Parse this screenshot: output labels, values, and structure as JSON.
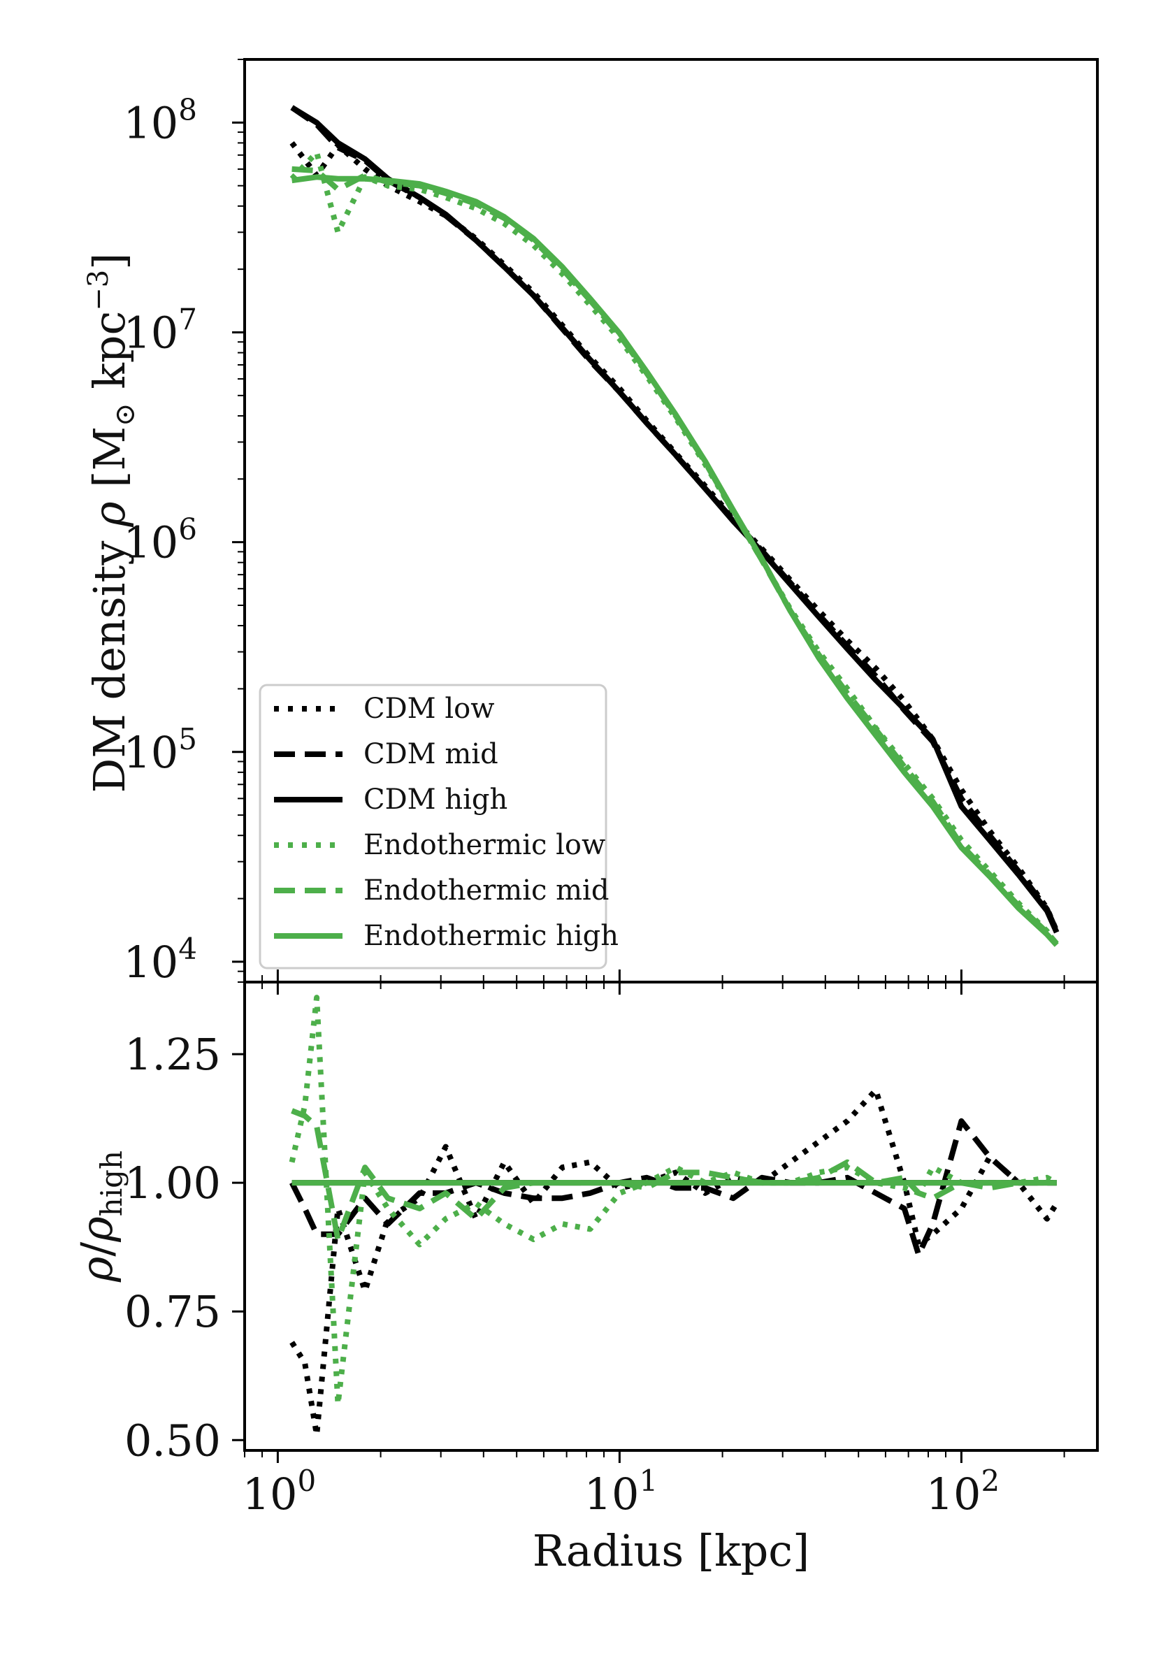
{
  "chart_data": [
    {
      "type": "line",
      "panel": "top",
      "title": "",
      "xlabel": "",
      "ylabel": "DM density ρ [M⊙ kpc⁻³]",
      "ylabel_parts": {
        "prefix": "DM density ",
        "rho": "ρ",
        "unit_open": " [M",
        "unit_sub": "⊙",
        "unit_mid": " kpc",
        "unit_sup": "−3",
        "unit_close": "]"
      },
      "xscale": "log",
      "yscale": "log",
      "xlim": [
        0.8,
        250
      ],
      "ylim": [
        8000,
        200000000
      ],
      "yticks": [
        {
          "value": 100000000,
          "base": "10",
          "exp": "8"
        },
        {
          "value": 10000000,
          "base": "10",
          "exp": "7"
        },
        {
          "value": 1000000,
          "base": "10",
          "exp": "6"
        },
        {
          "value": 100000,
          "base": "10",
          "exp": "5"
        },
        {
          "value": 10000,
          "base": "10",
          "exp": "4"
        }
      ],
      "legend_position": "lower-left",
      "x": [
        1.1,
        1.3,
        1.5,
        1.8,
        2.1,
        2.6,
        3.1,
        3.8,
        4.6,
        5.6,
        6.8,
        8.2,
        10,
        12,
        14.6,
        17.8,
        21.5,
        26.1,
        31.6,
        38.3,
        46.4,
        56.2,
        68.1,
        82.5,
        100,
        121,
        147,
        178,
        190
      ],
      "series": [
        {
          "name": "CDM low",
          "color": "#000000",
          "style": "dotted",
          "values": [
            80000000,
            56000000,
            78000000,
            60000000,
            50000000,
            42000000,
            36000000,
            28000000,
            21000000,
            15500000,
            10800000,
            7600000,
            5400000,
            3800000,
            2650000,
            1850000,
            1300000,
            930000,
            660000,
            470000,
            340000,
            250000,
            175000,
            115000,
            66000,
            42000,
            28000,
            18000,
            14000
          ]
        },
        {
          "name": "CDM mid",
          "color": "#000000",
          "style": "dashed",
          "values": [
            118000000,
            98000000,
            76000000,
            66000000,
            53000000,
            44000000,
            36000000,
            27500000,
            20500000,
            15000000,
            10400000,
            7300000,
            5200000,
            3700000,
            2600000,
            1800000,
            1280000,
            910000,
            640000,
            450000,
            320000,
            230000,
            158000,
            112000,
            60000,
            40000,
            27000,
            17800,
            14000
          ]
        },
        {
          "name": "CDM high",
          "color": "#000000",
          "style": "solid",
          "values": [
            118000000,
            100000000,
            80000000,
            67000000,
            54000000,
            44000000,
            36500000,
            27500000,
            20500000,
            15000000,
            10500000,
            7400000,
            5200000,
            3700000,
            2600000,
            1800000,
            1260000,
            900000,
            630000,
            440000,
            310000,
            220000,
            160000,
            115000,
            55000,
            38000,
            26000,
            17500,
            13800
          ]
        },
        {
          "name": "Endothermic low",
          "color": "#4daf4a",
          "style": "dotted",
          "values": [
            54000000,
            72000000,
            30000000,
            55000000,
            50000000,
            48000000,
            44000000,
            39000000,
            33000000,
            26000000,
            19000000,
            13500000,
            9300000,
            6200000,
            3900000,
            2350000,
            1400000,
            820000,
            480000,
            300000,
            200000,
            130000,
            88000,
            60000,
            38000,
            27000,
            19000,
            14000,
            12000
          ]
        },
        {
          "name": "Endothermic mid",
          "color": "#4daf4a",
          "style": "dashed",
          "values": [
            60000000,
            59000000,
            48000000,
            56000000,
            52000000,
            50000000,
            46000000,
            41000000,
            35000000,
            27500000,
            20000000,
            14200000,
            9700000,
            6400000,
            4000000,
            2400000,
            1400000,
            820000,
            470000,
            290000,
            190000,
            128000,
            85000,
            58000,
            36000,
            26000,
            18500,
            13800,
            12200
          ]
        },
        {
          "name": "Endothermic high",
          "color": "#4daf4a",
          "style": "solid",
          "values": [
            53000000,
            55000000,
            54000000,
            54000000,
            53000000,
            51000000,
            47000000,
            42000000,
            35500000,
            28000000,
            20500000,
            14500000,
            9900000,
            6500000,
            4050000,
            2430000,
            1420000,
            830000,
            470000,
            280000,
            180000,
            120000,
            80000,
            55000,
            35000,
            25500,
            18000,
            13500,
            12000
          ]
        }
      ]
    },
    {
      "type": "line",
      "panel": "bottom",
      "title": "",
      "xlabel": "Radius [kpc]",
      "ylabel": "ρ/ρhigh",
      "ylabel_parts": {
        "rho": "ρ",
        "slash": "/",
        "rho2": "ρ",
        "sub": "high"
      },
      "xscale": "log",
      "yscale": "linear",
      "xlim": [
        0.8,
        250
      ],
      "ylim": [
        0.48,
        1.39
      ],
      "yticks": [
        {
          "value": 0.5,
          "label": "0.50"
        },
        {
          "value": 0.75,
          "label": "0.75"
        },
        {
          "value": 1.0,
          "label": "1.00"
        },
        {
          "value": 1.25,
          "label": "1.25"
        }
      ],
      "xticks": [
        {
          "value": 1,
          "base": "10",
          "exp": "0"
        },
        {
          "value": 10,
          "base": "10",
          "exp": "1"
        },
        {
          "value": 100,
          "base": "10",
          "exp": "2"
        }
      ],
      "x": [
        1.1,
        1.2,
        1.3,
        1.5,
        1.8,
        2.1,
        2.6,
        3.1,
        3.8,
        4.6,
        5.6,
        6.8,
        8.2,
        10,
        12,
        14.6,
        17.8,
        21.5,
        26.1,
        31.6,
        38.3,
        46.4,
        56.2,
        68.1,
        75,
        82.5,
        100,
        121,
        147,
        178,
        190
      ],
      "series": [
        {
          "name": "CDM low",
          "color": "#000000",
          "style": "dotted",
          "values": [
            0.69,
            0.65,
            0.51,
            0.95,
            0.79,
            0.93,
            0.97,
            1.07,
            0.93,
            1.04,
            0.96,
            1.03,
            1.04,
            0.99,
            1.0,
            1.02,
            0.98,
            1.01,
            1.0,
            1.04,
            1.08,
            1.12,
            1.18,
            1.0,
            0.88,
            0.9,
            0.95,
            1.05,
            1.0,
            0.93,
            0.96
          ]
        },
        {
          "name": "CDM mid",
          "color": "#000000",
          "style": "dashed",
          "values": [
            1.0,
            0.95,
            0.9,
            0.9,
            0.97,
            0.92,
            0.98,
            0.98,
            1.0,
            0.98,
            0.97,
            0.97,
            0.98,
            1.0,
            1.01,
            0.99,
            0.99,
            0.97,
            1.01,
            1.0,
            1.0,
            1.01,
            0.98,
            0.95,
            0.86,
            0.92,
            1.12,
            1.05,
            1.0,
            1.0,
            1.0
          ]
        },
        {
          "name": "CDM high",
          "color": "#000000",
          "style": "solid",
          "values": [
            1.0,
            1.0,
            1.0,
            1.0,
            1.0,
            1.0,
            1.0,
            1.0,
            1.0,
            1.0,
            1.0,
            1.0,
            1.0,
            1.0,
            1.0,
            1.0,
            1.0,
            1.0,
            1.0,
            1.0,
            1.0,
            1.0,
            1.0,
            1.0,
            1.0,
            1.0,
            1.0,
            1.0,
            1.0,
            1.0,
            1.0
          ]
        },
        {
          "name": "Endothermic low",
          "color": "#4daf4a",
          "style": "dotted",
          "values": [
            1.04,
            1.15,
            1.36,
            0.57,
            1.02,
            0.95,
            0.88,
            0.93,
            0.96,
            0.92,
            0.89,
            0.92,
            0.91,
            0.98,
            1.0,
            1.03,
            1.0,
            1.02,
            1.0,
            1.0,
            1.02,
            1.03,
            1.0,
            0.99,
            0.98,
            1.03,
            1.0,
            1.0,
            1.0,
            1.01,
            1.0
          ]
        },
        {
          "name": "Endothermic mid",
          "color": "#4daf4a",
          "style": "dashed",
          "values": [
            1.14,
            1.13,
            1.11,
            0.89,
            1.03,
            0.97,
            0.95,
            0.98,
            0.93,
            0.99,
            1.0,
            1.0,
            1.0,
            1.0,
            0.99,
            1.02,
            1.02,
            1.01,
            1.0,
            1.0,
            1.01,
            1.04,
            1.0,
            1.01,
            0.98,
            0.97,
            1.0,
            0.99,
            1.0,
            1.0,
            1.0
          ]
        },
        {
          "name": "Endothermic high",
          "color": "#4daf4a",
          "style": "solid",
          "values": [
            1.0,
            1.0,
            1.0,
            1.0,
            1.0,
            1.0,
            1.0,
            1.0,
            1.0,
            1.0,
            1.0,
            1.0,
            1.0,
            1.0,
            1.0,
            1.0,
            1.0,
            1.0,
            1.0,
            1.0,
            1.0,
            1.0,
            1.0,
            1.0,
            1.0,
            1.0,
            1.0,
            1.0,
            1.0,
            1.0,
            1.0
          ]
        }
      ]
    }
  ]
}
